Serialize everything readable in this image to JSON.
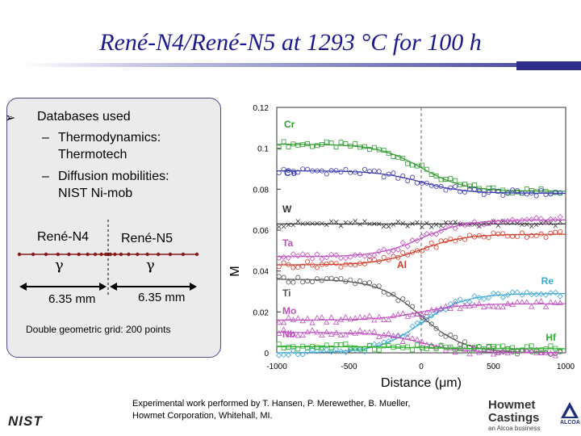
{
  "title": "René-N4/René-N5 at 1293 °C for 100 h",
  "left_panel": {
    "heading": "Databases used",
    "items": [
      {
        "dash": "–",
        "line1": "Thermodynamics:",
        "line2": "Thermotech"
      },
      {
        "dash": "–",
        "line1": "Diffusion mobilities:",
        "line2": "NIST Ni-mob"
      }
    ],
    "alloy_left": "René-N4",
    "alloy_right": "René-N5",
    "phase_left": "γ",
    "phase_right": "γ",
    "width_left": "6.35 mm",
    "width_right": "6.35 mm",
    "grid_note": "Double geometric grid: 200 points"
  },
  "credit": {
    "line1": "Experimental work performed by T. Hansen, P. Merewether, B. Mueller,",
    "line2": "Howmet Corporation, Whitehall, MI."
  },
  "logos": {
    "nist": "NIST",
    "howmet_line1": "Howmet",
    "howmet_line2": "Castings",
    "howmet_sub": "an Alcoa business",
    "alcoa": "ALCOA"
  },
  "colors": {
    "title": "#1a1a8c",
    "Cr": "#2e9a2e",
    "Co": "#3a3ab0",
    "W": "#333333",
    "Ta": "#c050c0",
    "Al": "#d23a2a",
    "Re": "#3aa7d6",
    "Ti": "#555555",
    "Mo": "#c050c0",
    "Nb": "#c050c0",
    "Hf": "#2ab02a"
  },
  "chart_data": {
    "type": "line",
    "xlabel": "Distance (μm)",
    "ylabel": "M",
    "xlim": [
      -1000,
      1000
    ],
    "ylim": [
      0,
      0.12
    ],
    "xticks": [
      -1000,
      -500,
      0,
      500,
      1000
    ],
    "yticks": [
      0,
      0.02,
      0.04,
      0.06,
      0.08,
      0.1,
      0.12
    ],
    "yticklabels": [
      "0",
      "0.02",
      "0.04",
      "0.06",
      "0.08",
      "0.1",
      "0.12"
    ],
    "interface_x": 0,
    "series": [
      {
        "name": "Cr",
        "left": 0.102,
        "right": 0.079
      },
      {
        "name": "Co",
        "left": 0.089,
        "right": 0.078
      },
      {
        "name": "W",
        "left": 0.063,
        "right": 0.063
      },
      {
        "name": "Ta",
        "left": 0.047,
        "right": 0.065
      },
      {
        "name": "Al",
        "left": 0.043,
        "right": 0.058
      },
      {
        "name": "Re",
        "left": 0.0,
        "right": 0.029
      },
      {
        "name": "Ti",
        "left": 0.036,
        "right": 0.0
      },
      {
        "name": "Mo",
        "left": 0.016,
        "right": 0.024
      },
      {
        "name": "Nb",
        "left": 0.01,
        "right": 0.0
      },
      {
        "name": "Hf",
        "left": 0.003,
        "right": 0.002
      }
    ]
  }
}
